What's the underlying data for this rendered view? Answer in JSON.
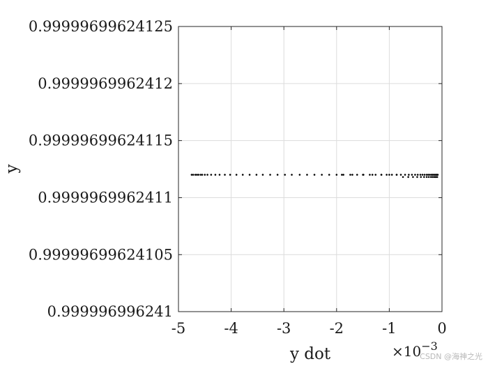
{
  "chart_data": {
    "type": "scatter",
    "xlabel": "y dot",
    "ylabel": "y",
    "x_exponent_label": "×10",
    "x_exponent_power": "−3",
    "x_scale_factor": 0.001,
    "xlim": [
      -0.005,
      0
    ],
    "ylim": [
      0.999996996241,
      0.99999699624125
    ],
    "x_ticks": [
      -0.005,
      -0.004,
      -0.003,
      -0.002,
      -0.001,
      0
    ],
    "x_tick_labels": [
      "-5",
      "-4",
      "-3",
      "-2",
      "-1",
      "0"
    ],
    "y_ticks": [
      0.999996996241,
      0.99999699624105,
      0.9999969962411,
      0.99999699624115,
      0.9999969962412,
      0.99999699624125
    ],
    "y_tick_labels": [
      "0.999996996241",
      "0.99999699624105",
      "0.9999969962411",
      "0.99999699624115",
      "0.9999969962412",
      "0.99999699624125"
    ],
    "grid": true,
    "series": [
      {
        "marker": "dot",
        "color": "#000000",
        "x": [
          -0.00475,
          -0.00472,
          -0.00468,
          -0.00465,
          -0.00462,
          -0.00458,
          -0.00455,
          -0.0045,
          -0.00445,
          -0.00438,
          -0.0043,
          -0.00422,
          -0.00412,
          -0.00402,
          -0.0039,
          -0.00378,
          -0.00365,
          -0.00352,
          -0.0034,
          -0.00326,
          -0.00312,
          -0.00298,
          -0.00285,
          -0.0027,
          -0.00256,
          -0.00242,
          -0.00228,
          -0.00214,
          -0.002,
          -0.00187,
          -0.00174,
          -0.00161,
          -0.00149,
          -0.00137,
          -0.00126,
          -0.00115,
          -0.00105,
          -0.00095,
          -0.00086,
          -0.00078,
          -0.0007,
          -0.00063,
          -0.00057,
          -0.00051,
          -0.00046,
          -0.00041,
          -0.00037,
          -0.00033,
          -0.00029,
          -0.00026,
          -0.00023,
          -0.0002,
          -0.00018,
          -0.00016,
          -0.00014,
          -0.00012,
          -0.00011,
          -0.0001,
          -9e-05,
          -8e-05,
          -9e-05,
          -0.00011,
          -0.00013,
          -0.00015,
          -0.00018,
          -0.00021,
          -0.00025,
          -0.00029,
          -0.00034,
          -0.0004,
          -0.00047,
          -0.00055,
          -0.00064,
          -0.00074,
          -0.00086,
          -0.001,
          -0.00115,
          -0.00132,
          -0.0015,
          -0.0017,
          -0.0019
        ],
        "y": [
          0.99999699624112,
          0.99999699624112,
          0.99999699624112,
          0.99999699624112,
          0.99999699624112,
          0.99999699624112,
          0.99999699624112,
          0.99999699624112,
          0.99999699624112,
          0.99999699624112,
          0.99999699624112,
          0.99999699624112,
          0.99999699624112,
          0.99999699624112,
          0.99999699624112,
          0.99999699624112,
          0.99999699624112,
          0.99999699624112,
          0.99999699624112,
          0.99999699624112,
          0.99999699624112,
          0.99999699624112,
          0.99999699624112,
          0.99999699624112,
          0.99999699624112,
          0.99999699624112,
          0.99999699624112,
          0.99999699624112,
          0.99999699624112,
          0.99999699624112,
          0.99999699624112,
          0.99999699624112,
          0.99999699624112,
          0.99999699624112,
          0.99999699624112,
          0.99999699624112,
          0.99999699624112,
          0.99999699624112,
          0.99999699624112,
          0.99999699624112,
          0.99999699624112,
          0.99999699624112,
          0.99999699624112,
          0.99999699624112,
          0.99999699624112,
          0.99999699624112,
          0.99999699624112,
          0.99999699624112,
          0.99999699624112,
          0.99999699624112,
          0.99999699624112,
          0.99999699624112,
          0.99999699624112,
          0.99999699624112,
          0.99999699624112,
          0.99999699624112,
          0.99999699624112,
          0.99999699624112,
          0.99999699624112,
          0.99999699624112,
          0.999996996241118,
          0.999996996241118,
          0.999996996241118,
          0.999996996241118,
          0.999996996241118,
          0.999996996241118,
          0.999996996241118,
          0.999996996241118,
          0.999996996241118,
          0.999996996241118,
          0.999996996241118,
          0.999996996241118,
          0.999996996241118,
          0.999996996241118,
          0.99999699624112,
          0.99999699624112,
          0.99999699624112,
          0.99999699624112,
          0.99999699624112,
          0.99999699624112,
          0.99999699624112
        ]
      }
    ]
  },
  "watermark": "CSDN @海神之光"
}
